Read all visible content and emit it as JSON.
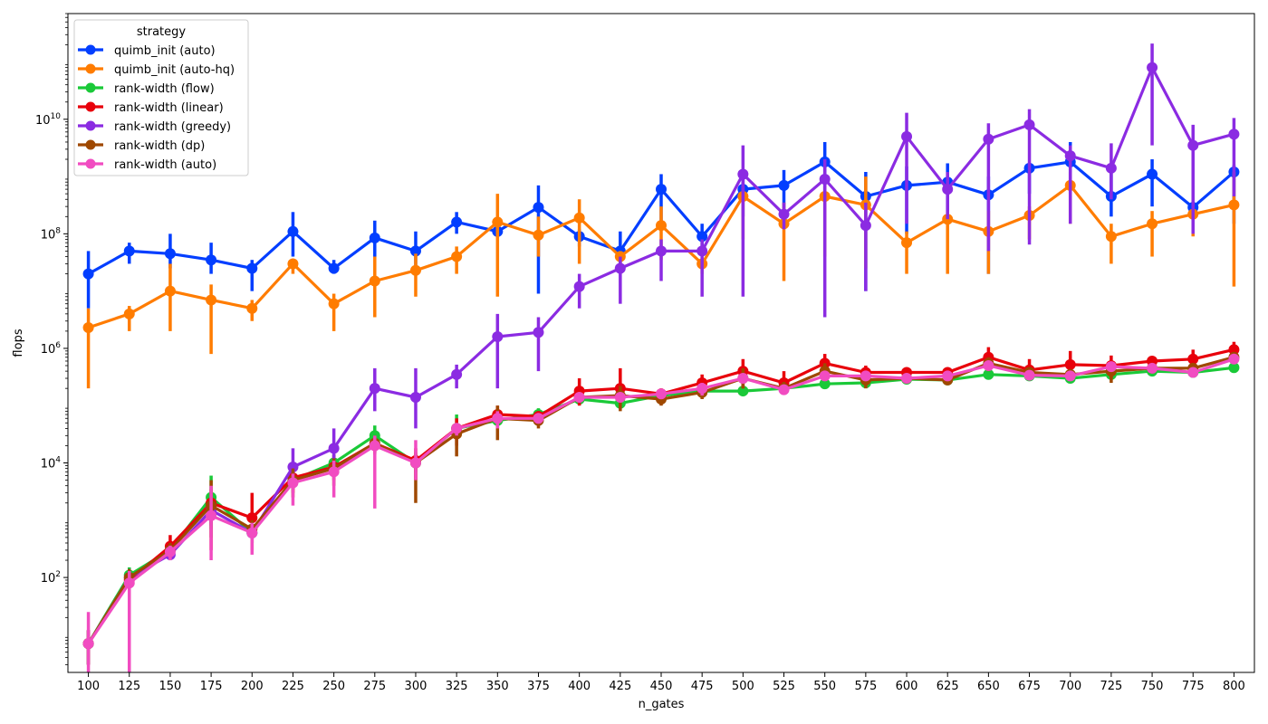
{
  "chart_data": {
    "type": "line",
    "xlabel": "n_gates",
    "ylabel": "flops",
    "yscale": "log",
    "ylim": [
      2.2,
      700000000000
    ],
    "categories": [
      "100",
      "125",
      "150",
      "175",
      "200",
      "225",
      "250",
      "275",
      "300",
      "325",
      "350",
      "375",
      "400",
      "425",
      "450",
      "475",
      "500",
      "525",
      "550",
      "575",
      "600",
      "625",
      "650",
      "675",
      "700",
      "725",
      "750",
      "775",
      "800"
    ],
    "yticks": [
      {
        "value": 100,
        "base": "10",
        "exp": "2"
      },
      {
        "value": 10000,
        "base": "10",
        "exp": "4"
      },
      {
        "value": 1000000,
        "base": "10",
        "exp": "6"
      },
      {
        "value": 100000000,
        "base": "10",
        "exp": "8"
      },
      {
        "value": 10000000000,
        "base": "10",
        "exp": "10"
      }
    ],
    "legend": {
      "title": "strategy",
      "position": "top-left"
    },
    "series": [
      {
        "name": "quimb_init (auto)",
        "color": "#023eff",
        "values": [
          20000000.0,
          50000000.0,
          45000000.0,
          35000000.0,
          25000000.0,
          110000000.0,
          25000000.0,
          85000000.0,
          50000000.0,
          160000000.0,
          110000000.0,
          290000000.0,
          90000000.0,
          50000000.0,
          600000000.0,
          90000000.0,
          600000000.0,
          700000000.0,
          1800000000.0,
          450000000.0,
          700000000.0,
          800000000.0,
          480000000.0,
          1400000000.0,
          1800000000.0,
          450000000.0,
          1100000000.0,
          290000000.0,
          1200000000.0
        ],
        "err_low": [
          5000000.0,
          30000000.0,
          25000000.0,
          20000000.0,
          10000000.0,
          40000000.0,
          20000000.0,
          40000000.0,
          25000000.0,
          100000000.0,
          90000000.0,
          9000000.0,
          60000000.0,
          20000000.0,
          150000000.0,
          50000000.0,
          200000000.0,
          150000000.0,
          500000000.0,
          10000000.0,
          100000000.0,
          250000000.0,
          20000000.0,
          500000000.0,
          500000000.0,
          200000000.0,
          300000000.0,
          100000000.0,
          150000000.0
        ],
        "err_high": [
          50000000.0,
          70000000.0,
          100000000.0,
          70000000.0,
          35000000.0,
          240000000.0,
          35000000.0,
          170000000.0,
          110000000.0,
          240000000.0,
          150000000.0,
          700000000.0,
          120000000.0,
          110000000.0,
          1100000000.0,
          150000000.0,
          1000000000.0,
          1300000000.0,
          4000000000.0,
          1200000000.0,
          1500000000.0,
          1700000000.0,
          1000000000.0,
          1700000000.0,
          4000000000.0,
          1300000000.0,
          2000000000.0,
          700000000.0,
          1600000000.0
        ]
      },
      {
        "name": "quimb_init (auto-hq)",
        "color": "#ff7c00",
        "values": [
          2300000.0,
          4000000.0,
          10000000.0,
          7000000.0,
          5000000.0,
          30000000.0,
          6000000.0,
          15000000.0,
          23000000.0,
          40000000.0,
          160000000.0,
          95000000.0,
          190000000.0,
          40000000.0,
          140000000.0,
          30000000.0,
          450000000.0,
          150000000.0,
          450000000.0,
          320000000.0,
          70000000.0,
          180000000.0,
          110000000.0,
          210000000.0,
          700000000.0,
          90000000.0,
          150000000.0,
          220000000.0,
          320000000.0
        ],
        "err_low": [
          200000.0,
          2000000.0,
          2000000.0,
          800000.0,
          3000000.0,
          20000000.0,
          2000000.0,
          3500000.0,
          8000000.0,
          20000000.0,
          8000000.0,
          40000000.0,
          30000000.0,
          30000000.0,
          35000000.0,
          20000000.0,
          80000000.0,
          15000000.0,
          40000000.0,
          25000000.0,
          20000000.0,
          20000000.0,
          20000000.0,
          80000000.0,
          150000000.0,
          30000000.0,
          40000000.0,
          90000000.0,
          12000000.0
        ],
        "err_high": [
          5000000.0,
          5500000.0,
          30000000.0,
          13000000.0,
          7000000.0,
          35000000.0,
          9000000.0,
          40000000.0,
          45000000.0,
          60000000.0,
          500000000.0,
          200000000.0,
          400000000.0,
          50000000.0,
          300000000.0,
          35000000.0,
          700000000.0,
          350000000.0,
          700000000.0,
          1000000000.0,
          110000000.0,
          250000000.0,
          250000000.0,
          300000000.0,
          1200000000.0,
          150000000.0,
          250000000.0,
          350000000.0,
          1200000000.0
        ]
      },
      {
        "name": "rank-width (flow)",
        "color": "#1ac938",
        "values": [
          7,
          110,
          300,
          2500,
          600,
          5000,
          10000,
          30000,
          10000,
          40000,
          55000,
          70000,
          130000,
          110000,
          150000,
          180000,
          180000,
          200000,
          240000,
          250000,
          290000,
          280000,
          350000,
          330000,
          300000,
          350000,
          400000,
          380000,
          460000
        ],
        "err_low": [
          3,
          80,
          230,
          700,
          400,
          3500,
          6000,
          15000,
          7000,
          30000,
          40000,
          50000,
          110000,
          90000,
          130000,
          160000,
          160000,
          180000,
          220000,
          230000,
          270000,
          260000,
          320000,
          310000,
          280000,
          320000,
          380000,
          360000,
          430000
        ],
        "err_high": [
          12,
          150,
          380,
          6000,
          900,
          7000,
          14000,
          45000,
          14000,
          70000,
          80000,
          90000,
          150000,
          130000,
          170000,
          200000,
          200000,
          220000,
          260000,
          270000,
          310000,
          300000,
          380000,
          350000,
          320000,
          380000,
          420000,
          400000,
          490000
        ]
      },
      {
        "name": "rank-width (linear)",
        "color": "#e8000b",
        "values": [
          7,
          90,
          350,
          2000,
          1100,
          5500,
          8500,
          22000,
          11000,
          40000,
          70000,
          65000,
          180000,
          200000,
          160000,
          250000,
          400000,
          250000,
          550000,
          380000,
          380000,
          380000,
          700000,
          420000,
          520000,
          500000,
          600000,
          650000,
          950000
        ],
        "err_low": [
          3,
          60,
          220,
          300,
          300,
          3000,
          5000,
          15000,
          5000,
          20000,
          50000,
          50000,
          100000,
          120000,
          120000,
          150000,
          200000,
          160000,
          300000,
          250000,
          300000,
          300000,
          500000,
          300000,
          300000,
          300000,
          450000,
          500000,
          700000
        ],
        "err_high": [
          12,
          130,
          550,
          3500,
          3000,
          8000,
          14000,
          28000,
          18000,
          60000,
          100000,
          80000,
          300000,
          450000,
          200000,
          350000,
          650000,
          400000,
          800000,
          500000,
          450000,
          460000,
          1050000,
          650000,
          900000,
          750000,
          700000,
          950000,
          1300000
        ]
      },
      {
        "name": "rank-width (greedy)",
        "color": "#8b2be2",
        "values": [
          7,
          100,
          250,
          1500,
          600,
          8500,
          18000,
          200000,
          140000,
          350000,
          1600000,
          1900000,
          12000000,
          25000000,
          50000000,
          50000000,
          1100000000.0,
          220000000.0,
          900000000.0,
          140000000.0,
          5000000000.0,
          600000000.0,
          4500000000.0,
          8000000000.0,
          2300000000.0,
          1400000000.0,
          80000000000.0,
          3500000000.0,
          5500000000.0
        ],
        "err_low": [
          3,
          70,
          200,
          800,
          400,
          5000,
          10000,
          80000,
          40000,
          200000,
          200000,
          400000,
          5000000,
          6000000,
          15000000,
          8000000,
          8000000,
          120000000.0,
          3500000.0,
          10000000.0,
          150000000.0,
          180000000.0,
          50000000.0,
          65000000.0,
          150000000.0,
          400000000.0,
          3500000000.0,
          100000000.0,
          450000000.0
        ],
        "err_high": [
          12,
          140,
          350,
          3000,
          900,
          18000,
          40000,
          450000,
          450000,
          520000,
          4000000,
          3500000,
          20000000,
          40000000,
          80000000,
          80000000,
          3500000000.0,
          350000000.0,
          2000000000.0,
          350000000.0,
          13000000000.0,
          1200000000.0,
          8500000000.0,
          15000000000.0,
          3500000000.0,
          3800000000.0,
          210000000000.0,
          8000000000.0,
          10500000000.0
        ]
      },
      {
        "name": "rank-width (dp)",
        "color": "#9f4800",
        "values": [
          7,
          100,
          300,
          1800,
          700,
          5000,
          8000,
          22000,
          10000,
          32000,
          60000,
          55000,
          140000,
          150000,
          130000,
          170000,
          300000,
          200000,
          400000,
          280000,
          300000,
          280000,
          550000,
          380000,
          350000,
          400000,
          450000,
          450000,
          700000
        ],
        "err_low": [
          3,
          70,
          220,
          500,
          300,
          2500,
          4000,
          14000,
          2000,
          13000,
          25000,
          40000,
          110000,
          80000,
          100000,
          130000,
          200000,
          160000,
          300000,
          200000,
          260000,
          240000,
          400000,
          330000,
          280000,
          250000,
          400000,
          400000,
          550000
        ],
        "err_high": [
          12,
          140,
          400,
          5000,
          1000,
          8000,
          12000,
          30000,
          15000,
          50000,
          100000,
          70000,
          170000,
          220000,
          160000,
          210000,
          450000,
          260000,
          550000,
          350000,
          340000,
          320000,
          700000,
          450000,
          420000,
          500000,
          500000,
          500000,
          850000
        ]
      },
      {
        "name": "rank-width (auto)",
        "color": "#f14cc1",
        "values": [
          7,
          80,
          280,
          1200,
          600,
          4500,
          7000,
          20000,
          10000,
          40000,
          60000,
          60000,
          140000,
          140000,
          160000,
          200000,
          300000,
          190000,
          330000,
          330000,
          300000,
          330000,
          500000,
          340000,
          330000,
          480000,
          450000,
          380000,
          650000
        ],
        "err_low": [
          2,
          2,
          200,
          200,
          250,
          1800,
          2500,
          1600,
          5000,
          30000,
          40000,
          50000,
          120000,
          120000,
          140000,
          150000,
          250000,
          170000,
          300000,
          280000,
          280000,
          300000,
          450000,
          300000,
          300000,
          420000,
          400000,
          330000,
          550000
        ],
        "err_high": [
          25,
          130,
          360,
          4000,
          900,
          6500,
          11000,
          30000,
          25000,
          50000,
          80000,
          70000,
          160000,
          160000,
          180000,
          250000,
          350000,
          220000,
          370000,
          380000,
          320000,
          360000,
          550000,
          380000,
          360000,
          540000,
          500000,
          430000,
          750000
        ]
      }
    ]
  }
}
